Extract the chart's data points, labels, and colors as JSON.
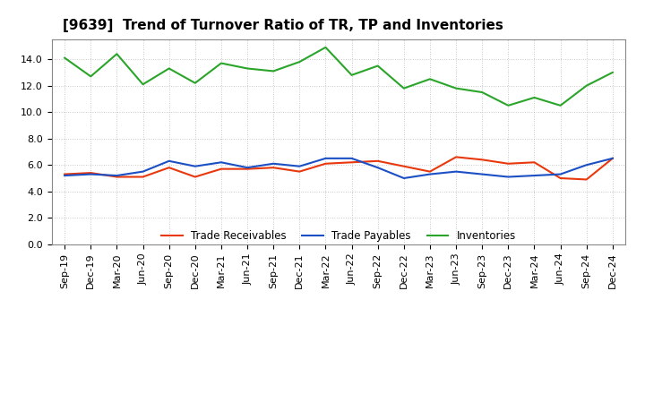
{
  "title": "[9639]  Trend of Turnover Ratio of TR, TP and Inventories",
  "x_labels": [
    "Sep-19",
    "Dec-19",
    "Mar-20",
    "Jun-20",
    "Sep-20",
    "Dec-20",
    "Mar-21",
    "Jun-21",
    "Sep-21",
    "Dec-21",
    "Mar-22",
    "Jun-22",
    "Sep-22",
    "Dec-22",
    "Mar-23",
    "Jun-23",
    "Sep-23",
    "Dec-23",
    "Mar-24",
    "Jun-24",
    "Sep-24",
    "Dec-24"
  ],
  "trade_receivables": [
    5.3,
    5.4,
    5.1,
    5.1,
    5.8,
    5.1,
    5.7,
    5.7,
    5.8,
    5.5,
    6.1,
    6.2,
    6.3,
    5.9,
    5.5,
    6.6,
    6.4,
    6.1,
    6.2,
    5.0,
    4.9,
    6.5
  ],
  "trade_payables": [
    5.2,
    5.3,
    5.2,
    5.5,
    6.3,
    5.9,
    6.2,
    5.8,
    6.1,
    5.9,
    6.5,
    6.5,
    5.8,
    5.0,
    5.3,
    5.5,
    5.3,
    5.1,
    5.2,
    5.3,
    6.0,
    6.5
  ],
  "inventories": [
    14.1,
    12.7,
    14.4,
    12.1,
    13.3,
    12.2,
    13.7,
    13.3,
    13.1,
    13.8,
    14.9,
    12.8,
    13.5,
    11.8,
    12.5,
    11.8,
    11.5,
    10.5,
    11.1,
    10.5,
    12.0,
    13.0
  ],
  "ylim": [
    0,
    15.5
  ],
  "yticks": [
    0.0,
    2.0,
    4.0,
    6.0,
    8.0,
    10.0,
    12.0,
    14.0
  ],
  "colors": {
    "trade_receivables": "#e8380d",
    "trade_payables": "#1b4fc4",
    "inventories": "#2aa52a"
  },
  "legend_labels": [
    "Trade Receivables",
    "Trade Payables",
    "Inventories"
  ],
  "background_color": "#ffffff",
  "grid_color": "#999999",
  "title_fontsize": 11,
  "tick_fontsize": 8
}
